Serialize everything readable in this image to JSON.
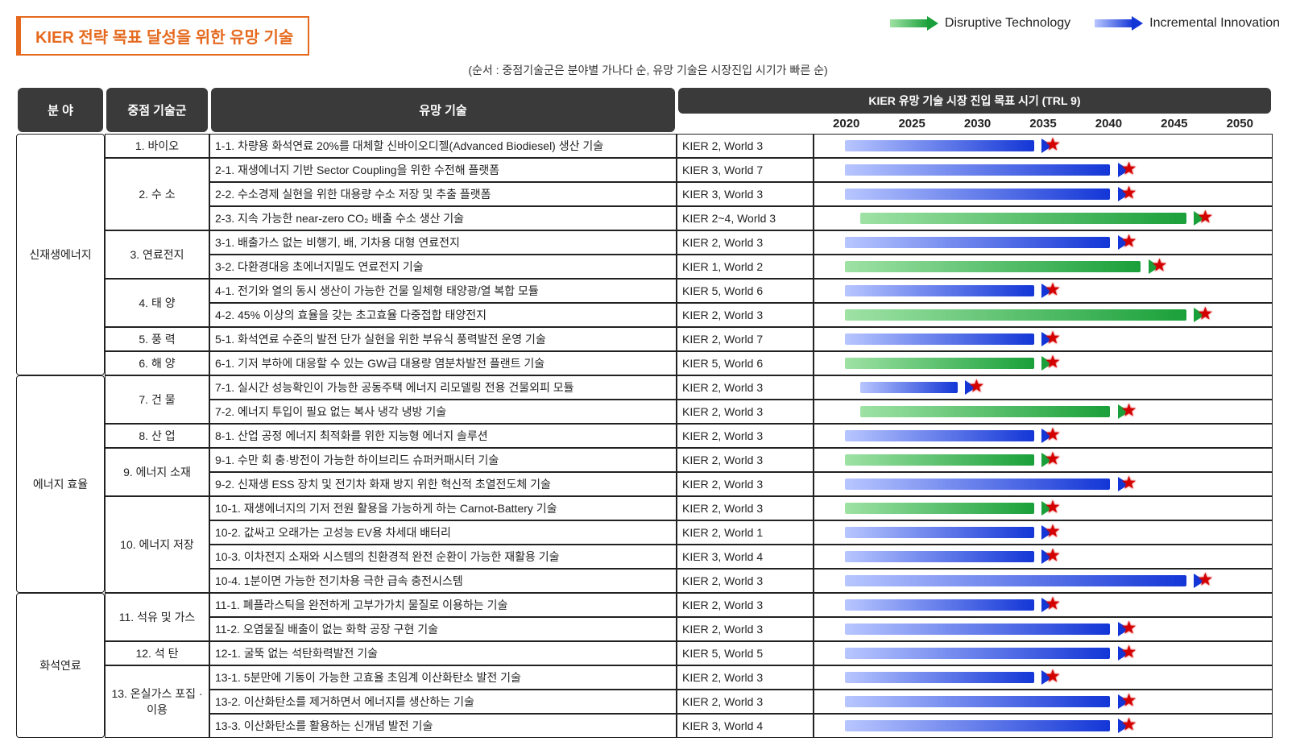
{
  "title": "KIER 전략 목표 달성을 위한 유망 기술",
  "subtitle_note": "(순서 : 중점기술군은 분야별 가나다 순, 유망 기술은 시장진입 시기가 빠른 순)",
  "legend": {
    "disruptive_label": "Disruptive Technology",
    "incremental_label": "Incremental Innovation"
  },
  "colors": {
    "title_accent": "#e56a1f",
    "header_bg": "#3a3a3a",
    "header_fg": "#ffffff",
    "border": "#222222",
    "disruptive_from": "#9ee2a4",
    "disruptive_to": "#1aa03a",
    "incremental_from": "#b8c6ff",
    "incremental_to": "#1336d6",
    "star": "#d40000"
  },
  "headers": {
    "field": "분  야",
    "group": "중점 기술군",
    "tech": "유망 기술",
    "timeline_title": "KIER 유망 기술 시장 진입 목표 시기 (TRL 9)"
  },
  "timeline": {
    "years": [
      2020,
      2025,
      2030,
      2035,
      2040,
      2045,
      2050
    ],
    "start": 2020,
    "end": 2050
  },
  "fields": [
    {
      "name": "신재생에너지",
      "group_ids": [
        0,
        1,
        2,
        3,
        4,
        5
      ]
    },
    {
      "name": "에너지 효율",
      "group_ids": [
        6,
        7,
        8,
        9
      ]
    },
    {
      "name": "화석연료",
      "group_ids": [
        10,
        11,
        12
      ]
    }
  ],
  "groups": [
    {
      "id": 0,
      "label": "1. 바이오",
      "row_ids": [
        0
      ]
    },
    {
      "id": 1,
      "label": "2. 수 소",
      "row_ids": [
        1,
        2,
        3
      ]
    },
    {
      "id": 2,
      "label": "3. 연료전지",
      "row_ids": [
        4,
        5
      ]
    },
    {
      "id": 3,
      "label": "4. 태 양",
      "row_ids": [
        6,
        7
      ]
    },
    {
      "id": 4,
      "label": "5. 풍 력",
      "row_ids": [
        8
      ]
    },
    {
      "id": 5,
      "label": "6. 해 양",
      "row_ids": [
        9
      ]
    },
    {
      "id": 6,
      "label": "7. 건 물",
      "row_ids": [
        10,
        11
      ]
    },
    {
      "id": 7,
      "label": "8. 산 업",
      "row_ids": [
        12
      ]
    },
    {
      "id": 8,
      "label": "9. 에너지 소재",
      "row_ids": [
        13,
        14
      ]
    },
    {
      "id": 9,
      "label": "10. 에너지 저장",
      "row_ids": [
        15,
        16,
        17,
        18
      ]
    },
    {
      "id": 10,
      "label": "11. 석유 및 가스",
      "row_ids": [
        19,
        20
      ]
    },
    {
      "id": 11,
      "label": "12. 석 탄",
      "row_ids": [
        21
      ]
    },
    {
      "id": 12,
      "label": "13. 온실가스 포집 · 이용",
      "row_ids": [
        22,
        23,
        24
      ]
    }
  ],
  "rows": [
    {
      "id": 0,
      "tech": "1-1. 차량용 화석연료 20%를 대체할 신바이오디젤(Advanced Biodiesel) 생산 기술",
      "kier_world": "KIER 2, World 3",
      "type": "incremental",
      "bar_start": 2022,
      "bar_end": 2035
    },
    {
      "id": 1,
      "tech": "2-1. 재생에너지 기반 Sector Coupling을 위한 수전해 플랫폼",
      "kier_world": "KIER 3, World 7",
      "type": "incremental",
      "bar_start": 2022,
      "bar_end": 2040
    },
    {
      "id": 2,
      "tech": "2-2. 수소경제 실현을 위한 대용량 수소 저장 및 추출 플랫폼",
      "kier_world": "KIER 3, World 3",
      "type": "incremental",
      "bar_start": 2022,
      "bar_end": 2040
    },
    {
      "id": 3,
      "tech": "2-3. 지속 가능한 near-zero CO₂ 배출 수소 생산 기술",
      "kier_world": "KIER 2~4, World 3",
      "type": "disruptive",
      "bar_start": 2023,
      "bar_end": 2045
    },
    {
      "id": 4,
      "tech": "3-1. 배출가스 없는  비행기, 배, 기차용 대형 연료전지",
      "kier_world": "KIER 2, World 3",
      "type": "incremental",
      "bar_start": 2022,
      "bar_end": 2040
    },
    {
      "id": 5,
      "tech": "3-2. 다환경대응 초에너지밀도 연료전지 기술",
      "kier_world": "KIER 1, World 2",
      "type": "disruptive",
      "bar_start": 2022,
      "bar_end": 2042
    },
    {
      "id": 6,
      "tech": "4-1. 전기와 열의 동시 생산이 가능한 건물 일체형 태양광/열 복합 모듈",
      "kier_world": "KIER 5, World 6",
      "type": "incremental",
      "bar_start": 2022,
      "bar_end": 2035
    },
    {
      "id": 7,
      "tech": "4-2. 45% 이상의 효율을 갖는 초고효율 다중접합 태양전지",
      "kier_world": "KIER 2, World 3",
      "type": "disruptive",
      "bar_start": 2022,
      "bar_end": 2045
    },
    {
      "id": 8,
      "tech": "5-1. 화석연료 수준의 발전 단가 실현을 위한 부유식 풍력발전 운영 기술",
      "kier_world": "KIER 2, World 7",
      "type": "incremental",
      "bar_start": 2022,
      "bar_end": 2035
    },
    {
      "id": 9,
      "tech": "6-1. 기저 부하에 대응할 수 있는 GW급 대용량 염분차발전 플랜트 기술",
      "kier_world": "KIER 5, World 6",
      "type": "disruptive",
      "bar_start": 2022,
      "bar_end": 2035
    },
    {
      "id": 10,
      "tech": "7-1. 실시간 성능확인이 가능한 공동주택 에너지 리모델링 전용 건물외피 모듈",
      "kier_world": "KIER 2, World 3",
      "type": "incremental",
      "bar_start": 2023,
      "bar_end": 2030
    },
    {
      "id": 11,
      "tech": "7-2. 에너지 투입이 필요 없는 복사 냉각 냉방 기술",
      "kier_world": "KIER 2, World 3",
      "type": "disruptive",
      "bar_start": 2023,
      "bar_end": 2040
    },
    {
      "id": 12,
      "tech": "8-1. 산업 공정 에너지 최적화를 위한 지능형 에너지 솔루션",
      "kier_world": "KIER 2, World 3",
      "type": "incremental",
      "bar_start": 2022,
      "bar_end": 2035
    },
    {
      "id": 13,
      "tech": "9-1. 수만 회 충·방전이 가능한 하이브리드 슈퍼커패시터 기술",
      "kier_world": "KIER 2, World 3",
      "type": "disruptive",
      "bar_start": 2022,
      "bar_end": 2035
    },
    {
      "id": 14,
      "tech": "9-2. 신재생 ESS 장치 및 전기차 화재 방지 위한 혁신적 초열전도체 기술",
      "kier_world": "KIER 2, World 3",
      "type": "incremental",
      "bar_start": 2022,
      "bar_end": 2040
    },
    {
      "id": 15,
      "tech": "10-1. 재생에너지의 기저 전원 활용을 가능하게 하는 Carnot-Battery 기술",
      "kier_world": "KIER 2, World 3",
      "type": "disruptive",
      "bar_start": 2022,
      "bar_end": 2035
    },
    {
      "id": 16,
      "tech": "10-2. 값싸고  오래가는 고성능 EV용 차세대 배터리",
      "kier_world": "KIER 2, World 1",
      "type": "incremental",
      "bar_start": 2022,
      "bar_end": 2035
    },
    {
      "id": 17,
      "tech": "10-3. 이차전지 소재와 시스템의 친환경적 완전 순환이 가능한 재활용 기술",
      "kier_world": "KIER 3, World 4",
      "type": "incremental",
      "bar_start": 2022,
      "bar_end": 2035
    },
    {
      "id": 18,
      "tech": "10-4. 1분이면 가능한 전기차용 극한 급속 충전시스템",
      "kier_world": "KIER 2, World 3",
      "type": "incremental",
      "bar_start": 2022,
      "bar_end": 2045
    },
    {
      "id": 19,
      "tech": "11-1. 폐플라스틱을 완전하게 고부가가치 물질로 이용하는 기술",
      "kier_world": "KIER 2, World 3",
      "type": "incremental",
      "bar_start": 2022,
      "bar_end": 2035
    },
    {
      "id": 20,
      "tech": "11-2. 오염물질 배출이 없는 화학 공장 구현 기술",
      "kier_world": "KIER 2, World 3",
      "type": "incremental",
      "bar_start": 2022,
      "bar_end": 2040
    },
    {
      "id": 21,
      "tech": "12-1. 굴뚝 없는 석탄화력발전 기술",
      "kier_world": "KIER 5, World 5",
      "type": "incremental",
      "bar_start": 2022,
      "bar_end": 2040
    },
    {
      "id": 22,
      "tech": "13-1. 5분만에 기동이 가능한 고효율 초임계 이산화탄소 발전 기술",
      "kier_world": "KIER 2, World 3",
      "type": "incremental",
      "bar_start": 2022,
      "bar_end": 2035
    },
    {
      "id": 23,
      "tech": "13-2. 이산화탄소를 제거하면서 에너지를 생산하는 기술",
      "kier_world": "KIER 2, World 3",
      "type": "incremental",
      "bar_start": 2022,
      "bar_end": 2040
    },
    {
      "id": 24,
      "tech": "13-3. 이산화탄소를 활용하는 신개념 발전 기술",
      "kier_world": "KIER 3, World 4",
      "type": "incremental",
      "bar_start": 2022,
      "bar_end": 2040
    }
  ]
}
